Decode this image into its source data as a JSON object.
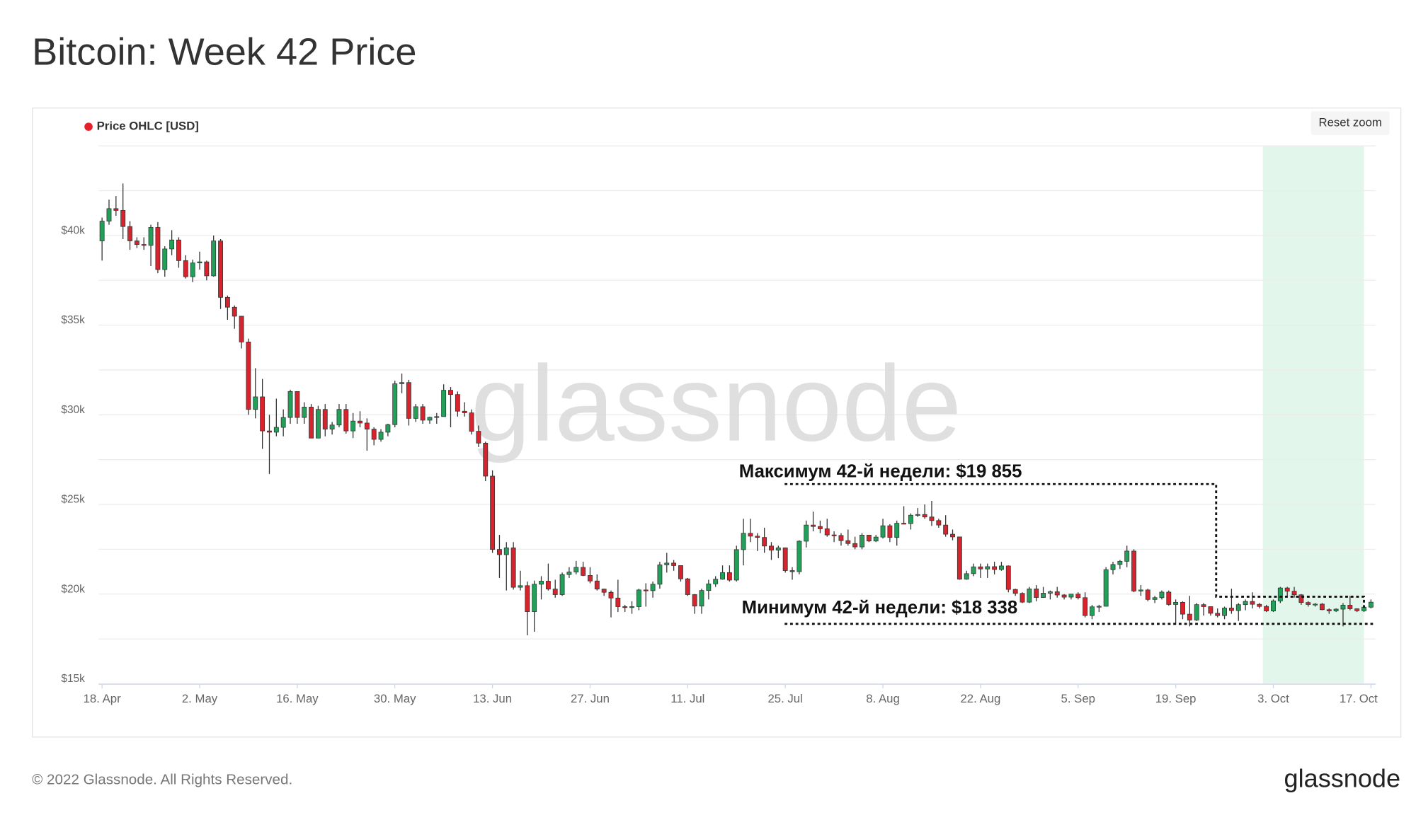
{
  "chart_data": {
    "type": "candlestick",
    "title": "Bitcoin: Week 42 Price",
    "watermark": "glassnode",
    "reset_button": "Reset zoom",
    "series": [
      {
        "name": "Price OHLC [USD]",
        "color": "#e4202a",
        "up_color": "#22a05a",
        "down_color": "#d8232c",
        "open": [
          39700,
          40800,
          41500,
          41400,
          40500,
          39700,
          39500,
          39450,
          40450,
          38100,
          39250,
          39750,
          38600,
          37700,
          38470,
          38530,
          37750,
          39700,
          36550,
          36000,
          35500,
          34060,
          30300,
          31000,
          29100,
          29030,
          29300,
          29850,
          31300,
          29850,
          30430,
          28700,
          30300,
          29200,
          29430,
          30300,
          29100,
          29650,
          29540,
          29200,
          28630,
          29030,
          29450,
          31730,
          31800,
          29800,
          30450,
          29700,
          29860,
          29900,
          31370,
          31130,
          30200,
          30110,
          29080,
          28420,
          26580,
          22490,
          22200,
          22580,
          20380,
          20470,
          19020,
          20550,
          20720,
          20280,
          19970,
          21090,
          21230,
          21490,
          21040,
          20730,
          20280,
          20100,
          19780,
          19300,
          19250,
          19300,
          20230,
          20190,
          20550,
          21630,
          21730,
          21590,
          20850,
          19970,
          19330,
          20200,
          20570,
          20830,
          21200,
          20780,
          22480,
          23390,
          23230,
          23160,
          22680,
          22450,
          22580,
          21310,
          21250,
          22950,
          23850,
          23770,
          23640,
          23300,
          23270,
          22980,
          22820,
          22630,
          23290,
          22960,
          23180,
          23810,
          23160,
          23950,
          23930,
          24400,
          24440,
          24300,
          24100,
          23850,
          23340,
          23190,
          20830,
          21140,
          21520,
          21400,
          21530,
          21370,
          21570,
          20260,
          20040,
          19550,
          20290,
          19810,
          20050,
          20130,
          19950,
          19830,
          20000,
          19800,
          18800,
          19290,
          19320,
          21360,
          21650,
          21830,
          22400,
          20170,
          20230,
          19700,
          19800,
          20110,
          19420,
          19540,
          18880,
          18550,
          19410,
          19300,
          18930,
          18800,
          19220,
          19080,
          19410,
          19590,
          19430,
          19310,
          19060,
          19620,
          20340,
          20160,
          19960,
          19530,
          19420,
          19440,
          19130,
          19060,
          19160,
          19380,
          19180,
          19070,
          19270
        ],
        "high": [
          41000,
          42000,
          42200,
          42900,
          40800,
          39900,
          39900,
          40600,
          40750,
          39400,
          40300,
          39900,
          38900,
          38650,
          39100,
          38600,
          40000,
          39800,
          36650,
          36100,
          35500,
          34250,
          32600,
          32000,
          30000,
          30900,
          30300,
          31400,
          31300,
          30700,
          30600,
          30500,
          30600,
          29600,
          30600,
          30600,
          30100,
          30200,
          29800,
          29300,
          29200,
          29500,
          31900,
          32300,
          31950,
          30600,
          30600,
          29900,
          30100,
          31700,
          31550,
          31300,
          30700,
          30300,
          29400,
          28500,
          26900,
          23300,
          22900,
          22900,
          21300,
          20700,
          20750,
          21000,
          21700,
          20800,
          21200,
          21500,
          21850,
          21800,
          21500,
          21100,
          20300,
          20200,
          20800,
          19400,
          19600,
          20300,
          20600,
          20700,
          21800,
          22300,
          21900,
          21600,
          20900,
          20000,
          20300,
          20800,
          21000,
          21600,
          21600,
          22700,
          24200,
          24200,
          23400,
          23700,
          22900,
          22700,
          22600,
          21500,
          23000,
          24100,
          24600,
          24100,
          24200,
          23500,
          23400,
          23600,
          23200,
          23400,
          23300,
          23300,
          24200,
          23900,
          24100,
          24900,
          24500,
          24800,
          25000,
          25200,
          24200,
          24400,
          23600,
          23200,
          21300,
          21700,
          21700,
          21700,
          21800,
          21800,
          21600,
          20300,
          20100,
          20400,
          20500,
          20400,
          20200,
          20400,
          20000,
          20000,
          20100,
          20100,
          19400,
          19400,
          21500,
          21800,
          21900,
          22700,
          22500,
          20500,
          20300,
          19900,
          20200,
          20200,
          19700,
          19600,
          19900,
          19500,
          19500,
          19300,
          19200,
          19300,
          20300,
          19500,
          19700,
          20100,
          19500,
          19400,
          19700,
          20400,
          20400,
          20400,
          20000,
          19600,
          19500,
          19500,
          19200,
          19200,
          19500,
          19900,
          19200,
          19400,
          19700
        ],
        "low": [
          38600,
          40600,
          41100,
          39800,
          39200,
          39300,
          39200,
          38300,
          37900,
          37700,
          38900,
          38200,
          37600,
          37400,
          38100,
          37500,
          37700,
          35900,
          35300,
          34800,
          33700,
          30000,
          29800,
          28100,
          26700,
          28800,
          28800,
          29500,
          29500,
          29500,
          28700,
          28700,
          28800,
          28900,
          29300,
          28950,
          28700,
          29300,
          28000,
          28300,
          28500,
          28800,
          29300,
          31200,
          29400,
          29600,
          29500,
          29500,
          29500,
          29900,
          29300,
          29900,
          29900,
          28900,
          28200,
          26300,
          22300,
          20900,
          20200,
          20250,
          20200,
          17700,
          17900,
          19700,
          20200,
          19800,
          19900,
          20900,
          21100,
          21000,
          20600,
          20200,
          19900,
          18700,
          19000,
          19000,
          18900,
          19100,
          19300,
          19800,
          20300,
          21200,
          21300,
          20700,
          19900,
          18900,
          18900,
          19700,
          20400,
          20800,
          20700,
          20700,
          21600,
          22900,
          22400,
          22300,
          21900,
          22000,
          21200,
          20800,
          21100,
          22600,
          23500,
          23400,
          23200,
          22900,
          22700,
          22700,
          22500,
          22500,
          22900,
          22900,
          23100,
          22900,
          22700,
          23900,
          23600,
          24300,
          24200,
          23800,
          23700,
          23200,
          23000,
          20800,
          20800,
          21000,
          20900,
          20900,
          21100,
          21300,
          20100,
          19900,
          19500,
          19500,
          19600,
          19800,
          19700,
          19800,
          19700,
          19700,
          19700,
          18700,
          18600,
          19000,
          19300,
          21100,
          21400,
          21500,
          20100,
          19900,
          19600,
          19500,
          19700,
          19350,
          18300,
          18600,
          18200,
          18500,
          18800,
          18800,
          18700,
          18600,
          18900,
          18500,
          19100,
          19200,
          19200,
          19000,
          19000,
          19500,
          19900,
          19800,
          19400,
          19300,
          19300,
          19100,
          18900,
          19000,
          18200,
          19100,
          19000,
          19000,
          19200
        ],
        "close": [
          40800,
          41500,
          41400,
          40500,
          39700,
          39500,
          39450,
          40450,
          38100,
          39250,
          39750,
          38600,
          37700,
          38470,
          38530,
          37750,
          39700,
          36550,
          36000,
          35500,
          34060,
          30300,
          31000,
          29100,
          29030,
          29300,
          29850,
          31300,
          29850,
          30430,
          28700,
          30300,
          29200,
          29430,
          30300,
          29100,
          29650,
          29540,
          29200,
          28630,
          29030,
          29450,
          31730,
          31800,
          29800,
          30450,
          29700,
          29860,
          29900,
          31370,
          31130,
          30200,
          30110,
          29080,
          28420,
          26580,
          22490,
          22200,
          22580,
          20380,
          20470,
          19020,
          20550,
          20720,
          20280,
          19970,
          21090,
          21230,
          21490,
          21040,
          20730,
          20280,
          20100,
          19780,
          19300,
          19250,
          19300,
          20230,
          20190,
          20550,
          21630,
          21730,
          21590,
          20850,
          19970,
          19330,
          20200,
          20570,
          20830,
          21200,
          20780,
          22480,
          23390,
          23230,
          23160,
          22680,
          22450,
          22580,
          21310,
          21250,
          22950,
          23850,
          23770,
          23640,
          23300,
          23270,
          22980,
          22820,
          22630,
          23290,
          22960,
          23180,
          23810,
          23160,
          23950,
          23930,
          24400,
          24440,
          24300,
          24100,
          23850,
          23340,
          23190,
          20830,
          21140,
          21520,
          21400,
          21530,
          21370,
          21570,
          20260,
          20040,
          19550,
          20290,
          19810,
          20050,
          20130,
          19950,
          19830,
          20000,
          19800,
          18800,
          19290,
          19320,
          21360,
          21650,
          21830,
          22400,
          20170,
          20230,
          19700,
          19800,
          20110,
          19420,
          19540,
          18880,
          18550,
          19410,
          19300,
          18930,
          18800,
          19220,
          19080,
          19410,
          19590,
          19430,
          19310,
          19060,
          19620,
          20340,
          20160,
          19960,
          19530,
          19420,
          19440,
          19130,
          19060,
          19160,
          19380,
          19180,
          19070,
          19270,
          19550
        ]
      }
    ],
    "xlim": [
      -0.5,
      182.7
    ],
    "xticks": [
      {
        "value": 0,
        "label": "18. Apr"
      },
      {
        "value": 14,
        "label": "2. May"
      },
      {
        "value": 28,
        "label": "16. May"
      },
      {
        "value": 42,
        "label": "30. May"
      },
      {
        "value": 56,
        "label": "13. Jun"
      },
      {
        "value": 70,
        "label": "27. Jun"
      },
      {
        "value": 84,
        "label": "11. Jul"
      },
      {
        "value": 98,
        "label": "25. Jul"
      },
      {
        "value": 112,
        "label": "8. Aug"
      },
      {
        "value": 126,
        "label": "22. Aug"
      },
      {
        "value": 140,
        "label": "5. Sep"
      },
      {
        "value": 154,
        "label": "19. Sep"
      },
      {
        "value": 168,
        "label": "3. Oct"
      },
      {
        "value": 182,
        "label": "17. Oct"
      }
    ],
    "ylim": [
      15000,
      45000
    ],
    "yticks": [
      {
        "value": 15000,
        "label": "$15k"
      },
      {
        "value": 20000,
        "label": "$20k"
      },
      {
        "value": 25000,
        "label": "$25k"
      },
      {
        "value": 30000,
        "label": "$30k"
      },
      {
        "value": 35000,
        "label": "$35k"
      },
      {
        "value": 40000,
        "label": "$40k"
      }
    ],
    "minor_yticks": [
      17500,
      22500,
      27500,
      32500,
      37500,
      42500,
      45000
    ],
    "grid": true,
    "highlight": {
      "range": [
        166.5,
        181
      ],
      "color": "#e2f6ec"
    },
    "annotations": [
      {
        "text": "Максимум 42-й недели: $19 855",
        "value": 19855
      },
      {
        "text": "Минимум 42-й недели: $18 338",
        "value": 18338
      }
    ]
  },
  "footer": {
    "copyright": "© 2022 Glassnode. All Rights Reserved.",
    "logo": "glassnode"
  }
}
